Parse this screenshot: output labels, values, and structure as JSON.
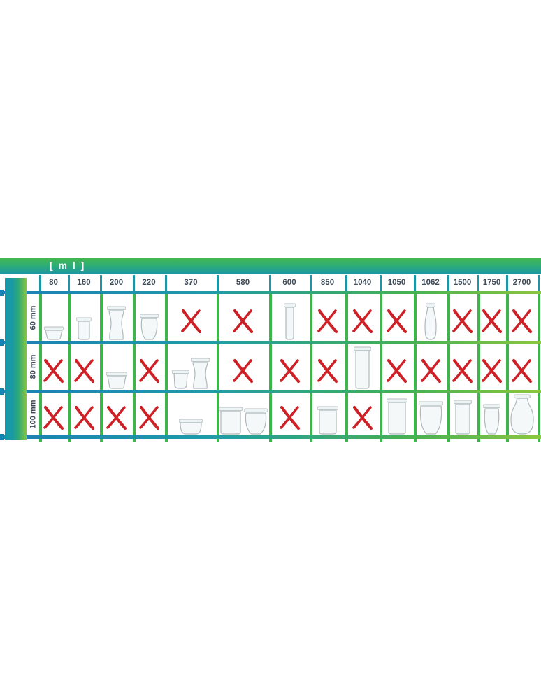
{
  "unit_label": "[ m l ]",
  "columns": [
    "80",
    "160",
    "200",
    "220",
    "370",
    "580",
    "600",
    "850",
    "1040",
    "1050",
    "1062",
    "1500",
    "1750",
    "2700"
  ],
  "rows": [
    {
      "label": "60 mm",
      "cells": [
        {
          "available": true,
          "jars": [
            {
              "type": "mold",
              "w": 28,
              "h": 20
            }
          ]
        },
        {
          "available": true,
          "jars": [
            {
              "type": "cyl",
              "w": 22,
              "h": 33
            }
          ]
        },
        {
          "available": true,
          "jars": [
            {
              "type": "hourglass",
              "w": 27,
              "h": 49
            }
          ]
        },
        {
          "available": true,
          "jars": [
            {
              "type": "round",
              "w": 27,
              "h": 38
            }
          ]
        },
        {
          "available": false,
          "mark": "red-x"
        },
        {
          "available": false,
          "mark": "red-x"
        },
        {
          "available": true,
          "jars": [
            {
              "type": "slim",
              "w": 17,
              "h": 53
            }
          ]
        },
        {
          "available": false,
          "mark": "red-x"
        },
        {
          "available": false,
          "mark": "red-x"
        },
        {
          "available": false,
          "mark": "red-x"
        },
        {
          "available": true,
          "jars": [
            {
              "type": "carafe",
              "w": 22,
              "h": 53
            }
          ]
        },
        {
          "available": false,
          "mark": "red-x"
        },
        {
          "available": false,
          "mark": "red-x"
        },
        {
          "available": false,
          "mark": "red-x"
        }
      ]
    },
    {
      "label": "80 mm",
      "cells": [
        {
          "available": false,
          "mark": "red-x"
        },
        {
          "available": false,
          "mark": "red-x"
        },
        {
          "available": true,
          "jars": [
            {
              "type": "mold",
              "w": 30,
              "h": 25
            }
          ]
        },
        {
          "available": false,
          "mark": "red-x"
        },
        {
          "available": true,
          "jars": [
            {
              "type": "cup",
              "w": 25,
              "h": 28
            },
            {
              "type": "hourglass",
              "w": 27,
              "h": 45
            }
          ]
        },
        {
          "available": false,
          "mark": "red-x"
        },
        {
          "available": false,
          "mark": "red-x"
        },
        {
          "available": false,
          "mark": "red-x"
        },
        {
          "available": true,
          "jars": [
            {
              "type": "cyl",
              "w": 25,
              "h": 61
            }
          ]
        },
        {
          "available": false,
          "mark": "red-x"
        },
        {
          "available": false,
          "mark": "red-x"
        },
        {
          "available": false,
          "mark": "red-x"
        },
        {
          "available": false,
          "mark": "red-x"
        },
        {
          "available": false,
          "mark": "red-x"
        }
      ]
    },
    {
      "label": "100 mm",
      "cells": [
        {
          "available": false,
          "mark": "red-x"
        },
        {
          "available": false,
          "mark": "red-x"
        },
        {
          "available": false,
          "mark": "red-x"
        },
        {
          "available": false,
          "mark": "red-x"
        },
        {
          "available": true,
          "jars": [
            {
              "type": "bowl",
              "w": 34,
              "h": 23
            }
          ]
        },
        {
          "available": true,
          "jars": [
            {
              "type": "cyl",
              "w": 34,
              "h": 40
            },
            {
              "type": "round",
              "w": 34,
              "h": 38
            }
          ]
        },
        {
          "available": false,
          "mark": "red-x"
        },
        {
          "available": true,
          "jars": [
            {
              "type": "cyl",
              "w": 30,
              "h": 41
            }
          ]
        },
        {
          "available": false,
          "mark": "red-x"
        },
        {
          "available": true,
          "jars": [
            {
              "type": "cyl",
              "w": 30,
              "h": 52
            }
          ]
        },
        {
          "available": true,
          "jars": [
            {
              "type": "round",
              "w": 35,
              "h": 48
            }
          ]
        },
        {
          "available": true,
          "jars": [
            {
              "type": "cyl",
              "w": 26,
              "h": 50
            }
          ]
        },
        {
          "available": true,
          "jars": [
            {
              "type": "round",
              "w": 25,
              "h": 44
            }
          ]
        },
        {
          "available": true,
          "jars": [
            {
              "type": "carafe",
              "w": 38,
              "h": 58
            }
          ]
        }
      ]
    }
  ],
  "chart_data": {
    "type": "table",
    "title": "[ m l ]",
    "description": "Availability matrix of glass jars: volume in ml (columns) vs rim diameter in mm (rows); jar image = available, red X = not available",
    "columns": [
      80,
      160,
      200,
      220,
      370,
      580,
      600,
      850,
      1040,
      1050,
      1062,
      1500,
      1750,
      2700
    ],
    "row_labels": [
      "60 mm",
      "80 mm",
      "100 mm"
    ],
    "availability": [
      [
        true,
        true,
        true,
        true,
        false,
        false,
        true,
        false,
        false,
        false,
        true,
        false,
        false,
        false
      ],
      [
        false,
        false,
        true,
        false,
        true,
        false,
        false,
        false,
        true,
        false,
        false,
        false,
        false,
        false
      ],
      [
        false,
        false,
        false,
        false,
        true,
        true,
        false,
        true,
        false,
        true,
        true,
        true,
        true,
        true
      ]
    ]
  },
  "colors": {
    "accent_teal": "#1a96a6",
    "accent_green": "#3eb54b",
    "line_gradient_left": "#1b7fb5",
    "line_gradient_right": "#8cc63f",
    "x_mark_red": "#cd2127",
    "header_text": "#3e4b59",
    "glass_stroke": "#aeb9bb",
    "glass_fill": "#f5f8f8"
  }
}
